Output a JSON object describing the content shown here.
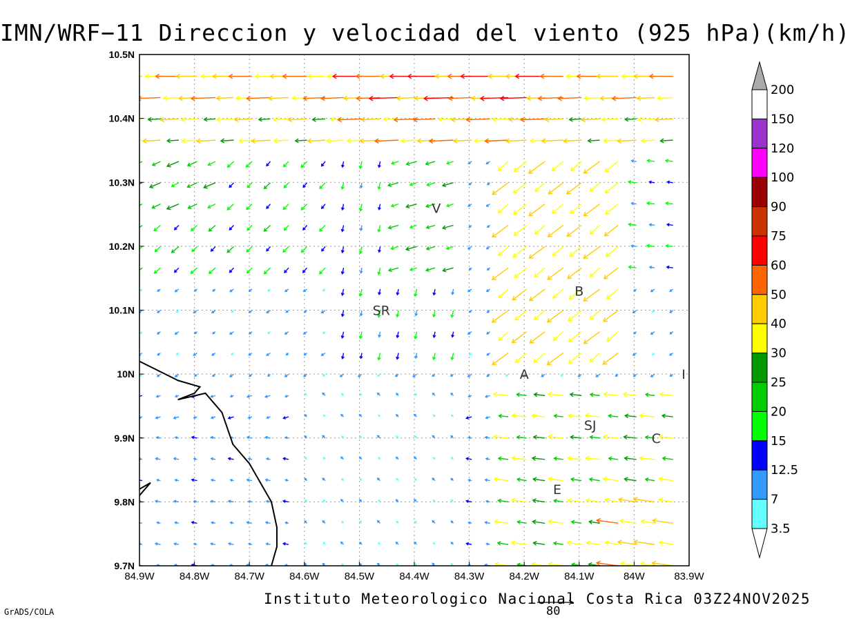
{
  "title": "IMN/WRF−11 Direccion y velocidad del viento (925 hPa)(km/h)",
  "footer": "Instituto Meteorologico Nacional Costa Rica 03Z24NOV2025",
  "software_label": "GrADS/COLA",
  "reference_vector": {
    "value": "80",
    "unit": "km/h"
  },
  "map": {
    "lon_range": [
      -84.9,
      -83.9
    ],
    "lat_range": [
      9.7,
      10.5
    ],
    "grid": true,
    "x_ticks": [
      "84.9W",
      "84.8W",
      "84.7W",
      "84.6W",
      "84.5W",
      "84.4W",
      "84.3W",
      "84.2W",
      "84.1W",
      "84W",
      "83.9W"
    ],
    "y_ticks": [
      "9.7N",
      "9.8N",
      "9.9N",
      "10N",
      "10.1N",
      "10.2N",
      "10.3N",
      "10.4N",
      "10.5N"
    ],
    "place_labels": [
      {
        "text": "V",
        "lon": -84.36,
        "lat": 10.26
      },
      {
        "text": "SR",
        "lon": -84.46,
        "lat": 10.1
      },
      {
        "text": "B",
        "lon": -84.1,
        "lat": 10.13
      },
      {
        "text": "A",
        "lon": -84.2,
        "lat": 10.0
      },
      {
        "text": "SJ",
        "lon": -84.08,
        "lat": 9.92
      },
      {
        "text": "C",
        "lon": -83.96,
        "lat": 9.9
      },
      {
        "text": "E",
        "lon": -84.14,
        "lat": 9.82
      },
      {
        "text": "I",
        "lon": -83.91,
        "lat": 10.0
      }
    ],
    "coastline": [
      [
        -84.9,
        10.02
      ],
      [
        -84.83,
        9.99
      ],
      [
        -84.79,
        9.98
      ],
      [
        -84.8,
        9.97
      ],
      [
        -84.83,
        9.96
      ],
      [
        -84.78,
        9.97
      ],
      [
        -84.75,
        9.94
      ],
      [
        -84.73,
        9.89
      ],
      [
        -84.7,
        9.86
      ],
      [
        -84.68,
        9.83
      ],
      [
        -84.66,
        9.8
      ],
      [
        -84.65,
        9.76
      ],
      [
        -84.65,
        9.73
      ],
      [
        -84.66,
        9.7
      ]
    ],
    "coastline_south": [
      [
        -84.9,
        9.82
      ],
      [
        -84.88,
        9.83
      ],
      [
        -84.9,
        9.81
      ]
    ]
  },
  "colorbar": {
    "levels": [
      "200",
      "150",
      "120",
      "100",
      "90",
      "75",
      "60",
      "50",
      "40",
      "30",
      "25",
      "20",
      "15",
      "12.5",
      "7",
      "3.5"
    ],
    "colors": [
      "#ffffff",
      "#9933cc",
      "#ff00ff",
      "#990000",
      "#cc3300",
      "#ff0000",
      "#ff6600",
      "#ffcc00",
      "#ffff00",
      "#009900",
      "#00cc00",
      "#00ff00",
      "#0000ff",
      "#3399ff",
      "#66ffff"
    ],
    "top_triangle_color": "#aaaaaa",
    "bottom_triangle_color": "#ffffff"
  },
  "wind_regimes": [
    {
      "region": "north band (10.35N-10.5N)",
      "direction": "from east",
      "speed_range_kmh": [
        25,
        60
      ]
    },
    {
      "region": "central valley (9.85N-10.25N, 84.8W-84.3W)",
      "direction": "from northeast, converging",
      "speed_range_kmh": [
        3.5,
        30
      ]
    },
    {
      "region": "east (10.1N-10.2N, 84.2W-84.0W)",
      "direction": "from northeast",
      "speed_range_kmh": [
        40,
        60
      ]
    },
    {
      "region": "southwest lowlands (9.7N-9.95N)",
      "direction": "from east",
      "speed_range_kmh": [
        3.5,
        15
      ]
    },
    {
      "region": "southeast (9.75N-9.95N, 84.2W-83.9W)",
      "direction": "from east",
      "speed_range_kmh": [
        20,
        60
      ]
    }
  ]
}
